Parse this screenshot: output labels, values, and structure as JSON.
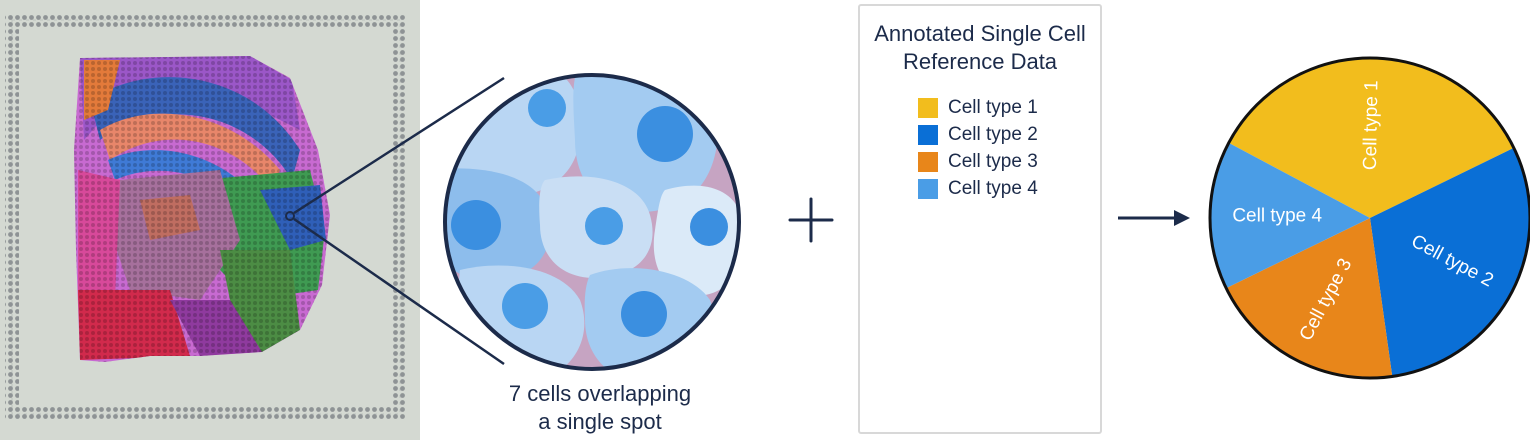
{
  "caption": {
    "line1": "7 cells overlapping",
    "line2": "a single spot"
  },
  "reference_panel": {
    "title_line1": "Annotated Single Cell",
    "title_line2": "Reference Data",
    "legend": [
      {
        "label": "Cell type 1",
        "color": "#f2bd1d"
      },
      {
        "label": "Cell type 2",
        "color": "#0a6fd6"
      },
      {
        "label": "Cell type 3",
        "color": "#e8861a"
      },
      {
        "label": "Cell type 4",
        "color": "#4a9de6"
      }
    ]
  },
  "symbols": {
    "plus": "plus-icon",
    "arrow": "arrow-right-icon"
  },
  "chart_data": {
    "type": "pie",
    "slices": [
      {
        "label": "Cell type 1",
        "value": 0.35,
        "color": "#f2bd1d"
      },
      {
        "label": "Cell type 2",
        "value": 0.3,
        "color": "#0a6fd6"
      },
      {
        "label": "Cell type 3",
        "value": 0.2,
        "color": "#e8861a"
      },
      {
        "label": "Cell type 4",
        "value": 0.15,
        "color": "#4a9de6"
      }
    ]
  }
}
